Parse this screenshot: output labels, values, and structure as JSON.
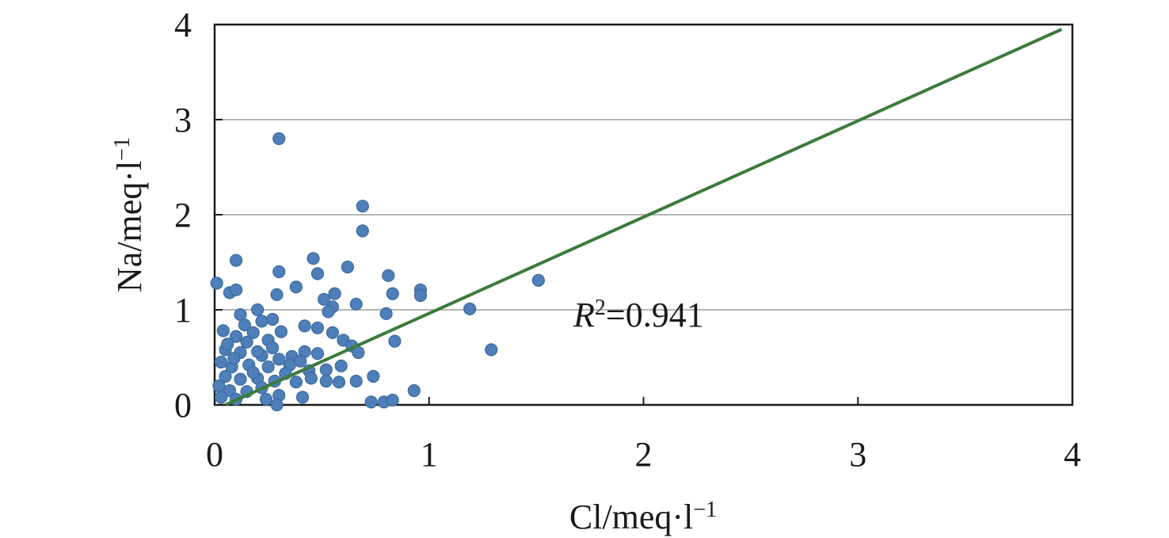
{
  "chart_data": {
    "type": "scatter",
    "xlabel": "Cl/meq·l",
    "xlabel_sup": "−1",
    "ylabel": "Na/meq·l",
    "ylabel_sup": "−1",
    "xlim": [
      0,
      4
    ],
    "ylim": [
      0,
      4
    ],
    "xticks": [
      "0",
      "1",
      "2",
      "3",
      "4"
    ],
    "yticks": [
      "0",
      "1",
      "2",
      "3",
      "4"
    ],
    "grid": "horizontal",
    "point_color": "#4f7fb8",
    "trend_color": "#3d7a3d",
    "trendline": {
      "x": [
        0.05,
        3.95
      ],
      "y": [
        0.0,
        3.95
      ]
    },
    "annotation": {
      "r": "R",
      "sup": "2",
      "value": "=0.941"
    },
    "points": [
      [
        0.01,
        1.28
      ],
      [
        0.07,
        1.18
      ],
      [
        0.1,
        1.21
      ],
      [
        0.1,
        1.52
      ],
      [
        0.3,
        2.8
      ],
      [
        0.69,
        2.09
      ],
      [
        0.69,
        1.83
      ],
      [
        0.46,
        1.54
      ],
      [
        0.62,
        1.45
      ],
      [
        0.3,
        1.4
      ],
      [
        0.48,
        1.38
      ],
      [
        0.81,
        1.36
      ],
      [
        0.38,
        1.24
      ],
      [
        0.29,
        1.16
      ],
      [
        0.56,
        1.17
      ],
      [
        0.83,
        1.17
      ],
      [
        0.96,
        1.21
      ],
      [
        0.96,
        1.15
      ],
      [
        1.51,
        1.31
      ],
      [
        1.19,
        1.01
      ],
      [
        1.29,
        0.58
      ],
      [
        0.51,
        1.11
      ],
      [
        0.55,
        1.03
      ],
      [
        0.66,
        1.06
      ],
      [
        0.53,
        0.98
      ],
      [
        0.8,
        0.96
      ],
      [
        0.2,
        1.0
      ],
      [
        0.12,
        0.95
      ],
      [
        0.27,
        0.9
      ],
      [
        0.22,
        0.88
      ],
      [
        0.42,
        0.83
      ],
      [
        0.48,
        0.81
      ],
      [
        0.31,
        0.77
      ],
      [
        0.18,
        0.76
      ],
      [
        0.04,
        0.78
      ],
      [
        0.1,
        0.72
      ],
      [
        0.15,
        0.66
      ],
      [
        0.25,
        0.68
      ],
      [
        0.55,
        0.76
      ],
      [
        0.6,
        0.68
      ],
      [
        0.64,
        0.62
      ],
      [
        0.84,
        0.67
      ],
      [
        0.67,
        0.55
      ],
      [
        0.42,
        0.56
      ],
      [
        0.48,
        0.54
      ],
      [
        0.36,
        0.51
      ],
      [
        0.3,
        0.48
      ],
      [
        0.22,
        0.52
      ],
      [
        0.12,
        0.55
      ],
      [
        0.05,
        0.58
      ],
      [
        0.03,
        0.45
      ],
      [
        0.08,
        0.4
      ],
      [
        0.16,
        0.42
      ],
      [
        0.25,
        0.4
      ],
      [
        0.35,
        0.42
      ],
      [
        0.44,
        0.36
      ],
      [
        0.52,
        0.37
      ],
      [
        0.59,
        0.41
      ],
      [
        0.74,
        0.3
      ],
      [
        0.66,
        0.25
      ],
      [
        0.58,
        0.24
      ],
      [
        0.52,
        0.25
      ],
      [
        0.45,
        0.28
      ],
      [
        0.38,
        0.24
      ],
      [
        0.28,
        0.25
      ],
      [
        0.2,
        0.28
      ],
      [
        0.12,
        0.27
      ],
      [
        0.05,
        0.3
      ],
      [
        0.02,
        0.2
      ],
      [
        0.07,
        0.15
      ],
      [
        0.15,
        0.14
      ],
      [
        0.22,
        0.18
      ],
      [
        0.3,
        0.1
      ],
      [
        0.41,
        0.08
      ],
      [
        0.24,
        0.06
      ],
      [
        0.1,
        0.06
      ],
      [
        0.03,
        0.08
      ],
      [
        0.93,
        0.15
      ],
      [
        0.73,
        0.03
      ],
      [
        0.79,
        0.03
      ],
      [
        0.83,
        0.05
      ],
      [
        0.29,
        0.0
      ],
      [
        0.18,
        0.34
      ],
      [
        0.33,
        0.33
      ],
      [
        0.09,
        0.49
      ],
      [
        0.4,
        0.46
      ],
      [
        0.27,
        0.6
      ],
      [
        0.14,
        0.84
      ],
      [
        0.06,
        0.64
      ],
      [
        0.2,
        0.56
      ]
    ]
  }
}
